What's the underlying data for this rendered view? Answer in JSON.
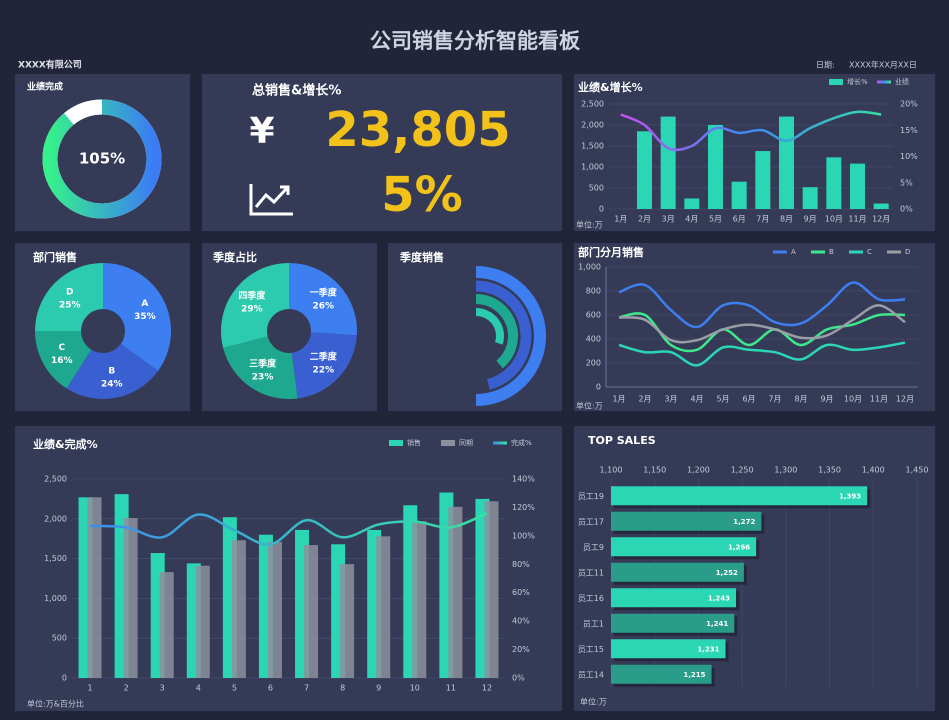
{
  "header": {
    "title": "公司销售分析智能看板",
    "company": "XXXX有限公司",
    "date_label": "日期:",
    "date": "XXXX年XX月XX日"
  },
  "kpi": {
    "title": "总销售&增长%",
    "symbol": "¥",
    "total": "23,805",
    "growth": "5%"
  },
  "chart_data": [
    {
      "type": "gauge",
      "title": "业绩完成",
      "values": [
        105
      ],
      "value_labels": [
        "105%"
      ],
      "colors": [
        "#35f08c",
        "#3b7cf5"
      ]
    },
    {
      "type": "combo",
      "title": "业绩&增长%",
      "categories": [
        "1月",
        "2月",
        "3月",
        "4月",
        "5月",
        "6月",
        "7月",
        "8月",
        "9月",
        "10月",
        "11月",
        "12月"
      ],
      "series": [
        {
          "name": "增长%",
          "type": "bar",
          "color": "#2bd6b4",
          "values": [
            0,
            1850,
            2200,
            250,
            2000,
            650,
            1380,
            2200,
            520,
            1230,
            1080,
            130
          ]
        },
        {
          "name": "业绩",
          "type": "line",
          "axis": "y2",
          "colors": [
            "#d24bf0",
            "#3d8af0",
            "#36e59e"
          ],
          "values": [
            18,
            16,
            11.6,
            12,
            15.4,
            14.5,
            15,
            13,
            15.4,
            17.3,
            18.5,
            18
          ]
        }
      ],
      "ylim": [
        0,
        2500
      ],
      "yticks": [
        0,
        500,
        {
          "value": 1000,
          "label": "1,000"
        },
        {
          "value": 1500,
          "label": "1,500"
        },
        {
          "value": 2000,
          "label": "2,000"
        },
        {
          "value": 2500,
          "label": "2,500"
        }
      ],
      "y2lim": [
        0,
        20
      ],
      "y2ticks": [
        {
          "value": 0,
          "label": "0%"
        },
        {
          "value": 5,
          "label": "5%"
        },
        {
          "value": 10,
          "label": "10%"
        },
        {
          "value": 15,
          "label": "15%"
        },
        {
          "value": 20,
          "label": "20%"
        }
      ],
      "grid": true,
      "legend": "top-right",
      "annotation": "单位:万"
    },
    {
      "type": "pie",
      "title": "部门销售",
      "categories": [
        "A",
        "B",
        "C",
        "D"
      ],
      "values": [
        35,
        24,
        16,
        25
      ],
      "value_labels": [
        "35%",
        "24%",
        "16%",
        "25%"
      ],
      "colors": [
        "#3d7ef0",
        "#3a5fd0",
        "#1fa890",
        "#2ccaae"
      ]
    },
    {
      "type": "pie",
      "title": "季度占比",
      "categories": [
        "一季度",
        "二季度",
        "三季度",
        "四季度"
      ],
      "values": [
        26,
        22,
        23,
        29
      ],
      "value_labels": [
        "26%",
        "22%",
        "23%",
        "29%"
      ],
      "colors": [
        "#3d7ef0",
        "#3a5fd0",
        "#1fa890",
        "#2ccaae"
      ]
    },
    {
      "type": "radial",
      "title": "季度销售",
      "values": [
        100,
        92,
        78,
        60
      ],
      "ylim": [
        0,
        100
      ],
      "colors": [
        "#3d7ef0",
        "#3a5fd0",
        "#1fa890",
        "#2ccaae"
      ]
    },
    {
      "type": "line",
      "title": "部门分月销售",
      "categories": [
        "1月",
        "2月",
        "3月",
        "4月",
        "5月",
        "6月",
        "7月",
        "8月",
        "9月",
        "10月",
        "11月",
        "12月"
      ],
      "series": [
        {
          "name": "A",
          "color": "#3d7ef0",
          "values": [
            790,
            850,
            640,
            500,
            680,
            680,
            540,
            530,
            680,
            870,
            730,
            730
          ]
        },
        {
          "name": "B",
          "color": "#3ee88a",
          "values": [
            580,
            600,
            350,
            310,
            480,
            350,
            480,
            350,
            480,
            520,
            600,
            600
          ]
        },
        {
          "name": "C",
          "color": "#2bd6b4",
          "values": [
            350,
            290,
            290,
            180,
            330,
            310,
            290,
            230,
            350,
            310,
            330,
            370
          ]
        },
        {
          "name": "D",
          "color": "#9a9ca6",
          "values": [
            580,
            560,
            390,
            390,
            480,
            520,
            480,
            410,
            430,
            560,
            680,
            540
          ]
        }
      ],
      "ylim": [
        0,
        1000
      ],
      "yticks": [
        0,
        200,
        400,
        600,
        800,
        {
          "value": 1000,
          "label": "1,000"
        }
      ],
      "grid": true,
      "legend": "top-right",
      "annotation": "单位:万"
    },
    {
      "type": "combo",
      "title": "业绩&完成%",
      "categories": [
        "1",
        "2",
        "3",
        "4",
        "5",
        "6",
        "7",
        "8",
        "9",
        "10",
        "11",
        "12"
      ],
      "series": [
        {
          "name": "销售",
          "type": "bar",
          "color": "#2bd6b4",
          "values": [
            2270,
            2310,
            1570,
            1440,
            2020,
            1800,
            1860,
            1680,
            1860,
            2170,
            2330,
            2250
          ]
        },
        {
          "name": "同期",
          "type": "bar",
          "color": "#8d919c",
          "values": [
            2270,
            2010,
            1330,
            1410,
            1730,
            1710,
            1670,
            1430,
            1780,
            1970,
            2150,
            2220
          ]
        },
        {
          "name": "完成%",
          "type": "line",
          "axis": "y2",
          "colors": [
            "#3d8af0",
            "#36e59e"
          ],
          "values": [
            107,
            106,
            99,
            115,
            104,
            94,
            111,
            99,
            108,
            110,
            106,
            116
          ]
        }
      ],
      "ylim": [
        0,
        2500
      ],
      "yticks": [
        0,
        500,
        {
          "value": 1000,
          "label": "1,000"
        },
        {
          "value": 1500,
          "label": "1,500"
        },
        {
          "value": 2000,
          "label": "2,000"
        },
        {
          "value": 2500,
          "label": "2,500"
        }
      ],
      "y2lim": [
        0,
        140
      ],
      "y2ticks": [
        {
          "value": 0,
          "label": "0%"
        },
        {
          "value": 20,
          "label": "20%"
        },
        {
          "value": 40,
          "label": "40%"
        },
        {
          "value": 60,
          "label": "60%"
        },
        {
          "value": 80,
          "label": "80%"
        },
        {
          "value": 100,
          "label": "100%"
        },
        {
          "value": 120,
          "label": "120%"
        },
        {
          "value": 140,
          "label": "140%"
        }
      ],
      "grid": true,
      "legend": "top-right",
      "annotation": "单位:万&百分比"
    },
    {
      "type": "hbar",
      "title": "TOP SALES",
      "categories": [
        "员工19",
        "员工17",
        "员工9",
        "员工11",
        "员工16",
        "员工1",
        "员工15",
        "员工14"
      ],
      "values": [
        1393,
        1272,
        1266,
        1252,
        1243,
        1241,
        1231,
        1215
      ],
      "value_labels": [
        "1,393",
        "1,272",
        "1,266",
        "1,252",
        "1,243",
        "1,241",
        "1,231",
        "1,215"
      ],
      "colors": [
        "#2bd6b4",
        "#2a9c8a",
        "#2bd6b4",
        "#2a9c8a",
        "#2bd6b4",
        "#2a9c8a",
        "#2bd6b4",
        "#2a9c8a"
      ],
      "xlim": [
        1100,
        1450
      ],
      "xticks": [
        {
          "value": 1100,
          "label": "1,100"
        },
        {
          "value": 1150,
          "label": "1,150"
        },
        {
          "value": 1200,
          "label": "1,200"
        },
        {
          "value": 1250,
          "label": "1,250"
        },
        {
          "value": 1300,
          "label": "1,300"
        },
        {
          "value": 1350,
          "label": "1,350"
        },
        {
          "value": 1400,
          "label": "1,400"
        },
        {
          "value": 1450,
          "label": "1,450"
        }
      ],
      "grid": true,
      "annotation": "单位:万"
    }
  ]
}
